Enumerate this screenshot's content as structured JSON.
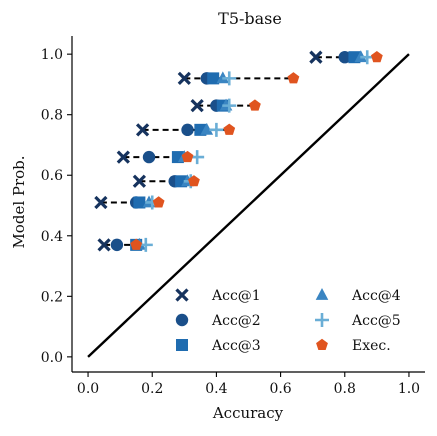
{
  "chart_data": {
    "type": "scatter",
    "title": "T5-base",
    "xlabel": "Accuracy",
    "ylabel": "Model Prob.",
    "xlim": [
      -0.05,
      1.05
    ],
    "ylim": [
      -0.05,
      1.06
    ],
    "xticks": [
      "0.0",
      "0.2",
      "0.4",
      "0.6",
      "0.8",
      "1.0"
    ],
    "yticks": [
      "0.0",
      "0.2",
      "0.4",
      "0.6",
      "0.8",
      "1.0"
    ],
    "xtick_values": [
      0.0,
      0.2,
      0.4,
      0.6,
      0.8,
      1.0
    ],
    "ytick_values": [
      0.0,
      0.2,
      0.4,
      0.6,
      0.8,
      1.0
    ],
    "grid": false,
    "legend_position": "lower-right",
    "reference_line": {
      "x": [
        0,
        1
      ],
      "y": [
        0,
        1
      ],
      "style": "solid",
      "color": "#000000"
    },
    "connector_style": "dashed",
    "series": [
      {
        "name": "Acc@1",
        "marker": "x",
        "color": "#16335e",
        "points": [
          [
            0.71,
            0.99
          ],
          [
            0.3,
            0.92
          ],
          [
            0.34,
            0.83
          ],
          [
            0.17,
            0.75
          ],
          [
            0.11,
            0.66
          ],
          [
            0.16,
            0.58
          ],
          [
            0.04,
            0.51
          ],
          [
            0.05,
            0.37
          ]
        ]
      },
      {
        "name": "Acc@2",
        "marker": "circle",
        "color": "#1a4f8a",
        "points": [
          [
            0.8,
            0.99
          ],
          [
            0.37,
            0.92
          ],
          [
            0.4,
            0.83
          ],
          [
            0.31,
            0.75
          ],
          [
            0.19,
            0.66
          ],
          [
            0.27,
            0.58
          ],
          [
            0.15,
            0.51
          ],
          [
            0.09,
            0.37
          ]
        ]
      },
      {
        "name": "Acc@3",
        "marker": "square",
        "color": "#1f6cb0",
        "points": [
          [
            0.83,
            0.99
          ],
          [
            0.39,
            0.92
          ],
          [
            0.42,
            0.83
          ],
          [
            0.35,
            0.75
          ],
          [
            0.28,
            0.66
          ],
          [
            0.29,
            0.58
          ],
          [
            0.16,
            0.51
          ],
          [
            0.15,
            0.37
          ]
        ]
      },
      {
        "name": "Acc@4",
        "marker": "triangle",
        "color": "#3a85c2",
        "points": [
          [
            0.85,
            0.99
          ],
          [
            0.42,
            0.92
          ],
          [
            0.43,
            0.83
          ],
          [
            0.37,
            0.75
          ],
          [
            0.3,
            0.66
          ],
          [
            0.31,
            0.58
          ],
          [
            0.19,
            0.51
          ],
          [
            0.16,
            0.37
          ]
        ]
      },
      {
        "name": "Acc@5",
        "marker": "plus",
        "color": "#6aaed6",
        "points": [
          [
            0.87,
            0.99
          ],
          [
            0.44,
            0.92
          ],
          [
            0.44,
            0.83
          ],
          [
            0.4,
            0.75
          ],
          [
            0.34,
            0.66
          ],
          [
            0.32,
            0.58
          ],
          [
            0.2,
            0.51
          ],
          [
            0.18,
            0.37
          ]
        ]
      },
      {
        "name": "Exec.",
        "marker": "pentagon",
        "color": "#e0541f",
        "points": [
          [
            0.9,
            0.99
          ],
          [
            0.64,
            0.92
          ],
          [
            0.52,
            0.83
          ],
          [
            0.44,
            0.75
          ],
          [
            0.31,
            0.66
          ],
          [
            0.33,
            0.58
          ],
          [
            0.22,
            0.51
          ],
          [
            0.15,
            0.37
          ]
        ]
      }
    ]
  }
}
